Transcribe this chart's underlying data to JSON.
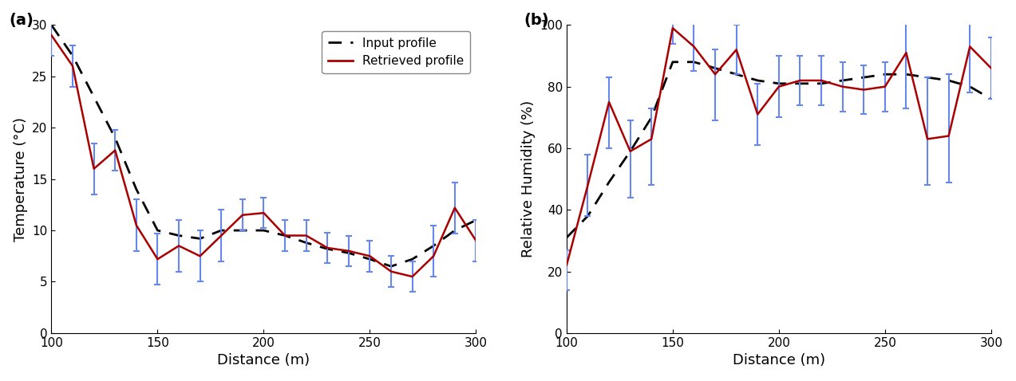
{
  "temp_x": [
    100,
    110,
    120,
    130,
    140,
    150,
    160,
    170,
    180,
    190,
    200,
    210,
    220,
    230,
    240,
    250,
    260,
    270,
    280,
    290,
    300
  ],
  "temp_input": [
    30,
    27.0,
    23.0,
    19.0,
    14.0,
    10.0,
    9.5,
    9.2,
    10.0,
    10.0,
    10.0,
    9.5,
    8.8,
    8.2,
    7.8,
    7.2,
    6.5,
    7.2,
    8.5,
    10.0,
    11.0
  ],
  "temp_retrieved": [
    29.0,
    26.0,
    16.0,
    17.8,
    10.5,
    7.2,
    8.5,
    7.5,
    9.5,
    11.5,
    11.7,
    9.5,
    9.5,
    8.3,
    8.0,
    7.5,
    6.0,
    5.5,
    7.5,
    12.2,
    9.0
  ],
  "temp_err_pos": [
    2.0,
    2.0,
    2.5,
    2.0,
    2.5,
    2.5,
    2.5,
    2.5,
    2.5,
    1.5,
    1.5,
    1.5,
    1.5,
    1.5,
    1.5,
    1.5,
    1.5,
    1.5,
    3.0,
    2.5,
    2.0
  ],
  "temp_err_neg": [
    2.0,
    2.0,
    2.5,
    2.0,
    2.5,
    2.5,
    2.5,
    2.5,
    2.5,
    1.5,
    1.5,
    1.5,
    1.5,
    1.5,
    1.5,
    1.5,
    1.5,
    1.5,
    2.0,
    2.5,
    2.0
  ],
  "rh_x": [
    100,
    110,
    120,
    130,
    140,
    150,
    160,
    170,
    180,
    190,
    200,
    210,
    220,
    230,
    240,
    250,
    260,
    270,
    280,
    290,
    300
  ],
  "rh_input": [
    31,
    38,
    49,
    59,
    70,
    88,
    88,
    86,
    84,
    82,
    81,
    81,
    81,
    82,
    83,
    84,
    84,
    83,
    82,
    80,
    76
  ],
  "rh_retrieved": [
    22,
    48,
    75,
    59,
    63,
    99,
    93,
    84,
    92,
    71,
    80,
    82,
    82,
    80,
    79,
    80,
    91,
    63,
    64,
    93,
    86
  ],
  "rh_err_pos": [
    5,
    10,
    8,
    10,
    10,
    5,
    8,
    8,
    8,
    10,
    10,
    8,
    8,
    8,
    8,
    8,
    10,
    20,
    20,
    15,
    10
  ],
  "rh_err_neg": [
    8,
    10,
    15,
    15,
    15,
    5,
    8,
    15,
    8,
    10,
    10,
    8,
    8,
    8,
    8,
    8,
    18,
    15,
    15,
    15,
    10
  ],
  "input_color": "#000000",
  "retrieved_line_color": "#aa0000",
  "errbar_color": "#6688ee",
  "temp_xlim": [
    100,
    300
  ],
  "temp_ylim": [
    0,
    30
  ],
  "rh_xlim": [
    100,
    300
  ],
  "rh_ylim": [
    0,
    100
  ],
  "xlabel": "Distance (m)",
  "temp_ylabel": "Temperature (°C)",
  "rh_ylabel": "Relative Humidity (%)",
  "legend_input": "Input profile",
  "legend_retrieved": "Retrieved profile",
  "temp_yticks": [
    0,
    5,
    10,
    15,
    20,
    25,
    30
  ],
  "rh_yticks": [
    0,
    20,
    40,
    60,
    80,
    100
  ],
  "xticks": [
    100,
    150,
    200,
    250,
    300
  ]
}
